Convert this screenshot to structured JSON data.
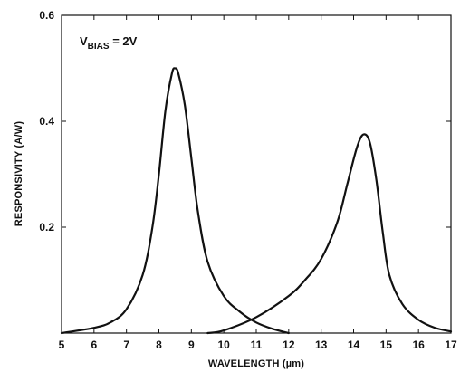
{
  "chart_data": {
    "type": "line",
    "xlabel": "WAVELENGTH (µm)",
    "ylabel": "RESPONSIVITY (A/W)",
    "xlim": [
      5,
      17
    ],
    "ylim": [
      0,
      0.6
    ],
    "x_ticks": [
      "5",
      "6",
      "7",
      "8",
      "9",
      "10",
      "11",
      "12",
      "13",
      "14",
      "15",
      "16",
      "17"
    ],
    "y_ticks": [
      "0.2",
      "0.4",
      "0.6"
    ],
    "annotation": {
      "main": "V",
      "sub": "BIAS",
      "rest": " = 2V"
    },
    "grid": false,
    "series": [
      {
        "color": "#111111",
        "points": [
          [
            5,
            0.0
          ],
          [
            6,
            0.01
          ],
          [
            6.5,
            0.02
          ],
          [
            7,
            0.045
          ],
          [
            7.5,
            0.11
          ],
          [
            7.8,
            0.2
          ],
          [
            8.0,
            0.3
          ],
          [
            8.2,
            0.42
          ],
          [
            8.4,
            0.49
          ],
          [
            8.5,
            0.5
          ],
          [
            8.6,
            0.49
          ],
          [
            8.8,
            0.43
          ],
          [
            9.0,
            0.33
          ],
          [
            9.2,
            0.23
          ],
          [
            9.5,
            0.135
          ],
          [
            10,
            0.07
          ],
          [
            10.5,
            0.04
          ],
          [
            11,
            0.02
          ],
          [
            11.5,
            0.008
          ],
          [
            12,
            0.0
          ]
        ]
      },
      {
        "color": "#111111",
        "points": [
          [
            9.5,
            0.0
          ],
          [
            10,
            0.005
          ],
          [
            11,
            0.03
          ],
          [
            12,
            0.07
          ],
          [
            12.5,
            0.1
          ],
          [
            13,
            0.14
          ],
          [
            13.5,
            0.21
          ],
          [
            13.8,
            0.28
          ],
          [
            14.1,
            0.35
          ],
          [
            14.3,
            0.375
          ],
          [
            14.5,
            0.36
          ],
          [
            14.7,
            0.29
          ],
          [
            14.9,
            0.19
          ],
          [
            15.1,
            0.11
          ],
          [
            15.5,
            0.055
          ],
          [
            16,
            0.025
          ],
          [
            16.5,
            0.01
          ],
          [
            17,
            0.003
          ]
        ]
      }
    ]
  }
}
